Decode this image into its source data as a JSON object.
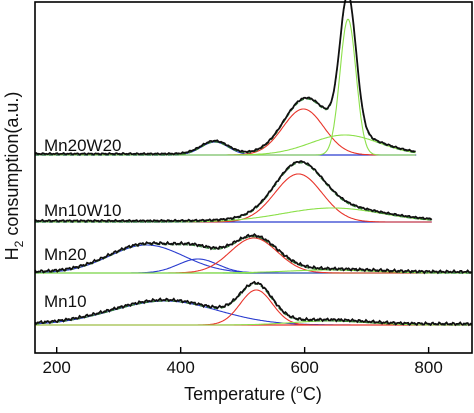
{
  "chart_data": {
    "type": "line",
    "title": "",
    "xlabel_parts": [
      "Temperature (",
      "o",
      "C)"
    ],
    "ylabel_parts": [
      "H",
      "2",
      " consumption(a.u.)"
    ],
    "xlim": [
      165,
      870
    ],
    "xticks": [
      200,
      400,
      600,
      800
    ],
    "grid": false,
    "legend": "none",
    "colors": {
      "measured": "#111111",
      "fit_total": "#2e7d32",
      "peak_blue": "#2a3ccf",
      "peak_red": "#e8352b",
      "peak_green": "#8ce04a",
      "baseline_mn20": "#27a82c",
      "baseline_mn10": "#e8352b"
    },
    "samples": [
      {
        "name": "Mn20W20",
        "x_end": 780,
        "baseline_y": 0,
        "peaks": [
          {
            "center": 455,
            "height": 13,
            "width": 22,
            "color": "blue"
          },
          {
            "center": 598,
            "height": 46,
            "width": 33,
            "color": "red"
          },
          {
            "center": 670,
            "height": 136,
            "width": 13,
            "color": "green"
          },
          {
            "center": 665,
            "height": 20,
            "width": 55,
            "color": "green"
          }
        ]
      },
      {
        "name": "Mn10W10",
        "x_end": 805,
        "baseline_y": 0,
        "peaks": [
          {
            "center": 590,
            "height": 48,
            "width": 38,
            "color": "red"
          },
          {
            "center": 645,
            "height": 14,
            "width": 80,
            "color": "green"
          }
        ]
      },
      {
        "name": "Mn20",
        "x_end": 870,
        "baseline_y": 0,
        "peaks": [
          {
            "center": 345,
            "height": 28,
            "width": 60,
            "color": "blue"
          },
          {
            "center": 428,
            "height": 14,
            "width": 32,
            "color": "blue"
          },
          {
            "center": 518,
            "height": 35,
            "width": 38,
            "color": "red"
          },
          {
            "center": 640,
            "height": 3,
            "width": 70,
            "color": "green"
          }
        ]
      },
      {
        "name": "Mn10",
        "x_end": 870,
        "baseline_y": 0,
        "peaks": [
          {
            "center": 375,
            "height": 24,
            "width": 85,
            "color": "blue"
          },
          {
            "center": 522,
            "height": 35,
            "width": 26,
            "color": "red"
          },
          {
            "center": 640,
            "height": 4,
            "width": 60,
            "color": "green"
          }
        ]
      }
    ]
  }
}
